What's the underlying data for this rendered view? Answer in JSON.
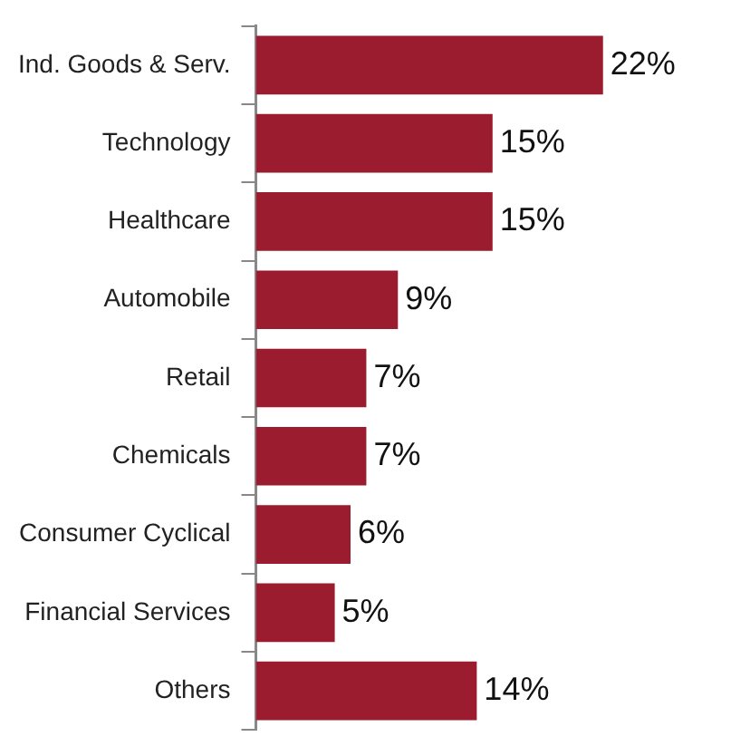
{
  "chart_data": {
    "type": "bar",
    "orientation": "horizontal",
    "categories": [
      "Ind. Goods & Serv.",
      "Technology",
      "Healthcare",
      "Automobile",
      "Retail",
      "Chemicals",
      "Consumer Cyclical",
      "Financial Services",
      "Others"
    ],
    "values": [
      22,
      15,
      15,
      9,
      7,
      7,
      6,
      5,
      14
    ],
    "value_labels": [
      "22%",
      "15%",
      "15%",
      "9%",
      "7%",
      "7%",
      "6%",
      "5%",
      "14%"
    ],
    "color": "#9b1c2e"
  }
}
